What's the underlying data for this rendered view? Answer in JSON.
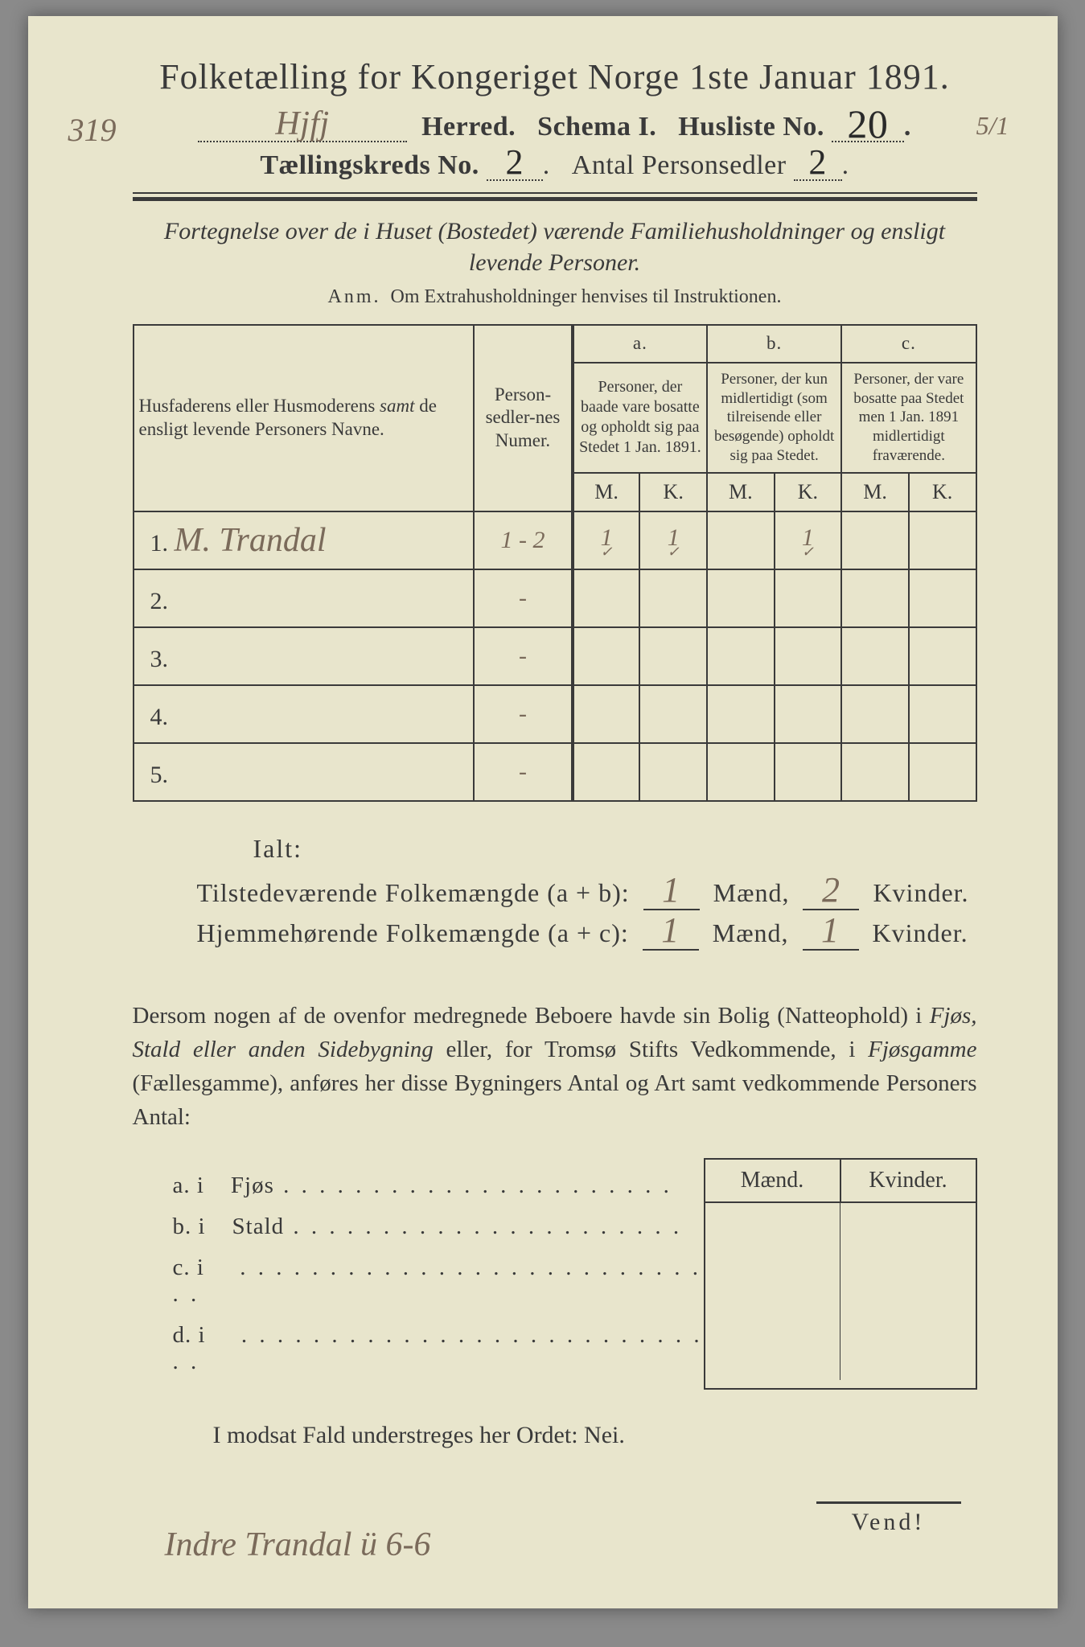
{
  "header": {
    "title": "Folketælling for Kongeriget Norge 1ste Januar 1891.",
    "left_margin_num": "319",
    "right_margin_num": "5/1",
    "herred_value": "Hjfj",
    "herred_label": "Herred.",
    "schema_label": "Schema I.",
    "husliste_label": "Husliste No.",
    "husliste_value": "20",
    "kreds_label": "Tællingskreds No.",
    "kreds_value": "2",
    "antal_label": "Antal Personsedler",
    "antal_value": "2"
  },
  "subtitle": "Fortegnelse over de i Huset (Bostedet) værende Familiehusholdninger og ensligt levende Personer.",
  "anm_label": "Anm.",
  "anm_text": "Om Extrahusholdninger henvises til Instruktionen.",
  "table": {
    "col_name": "Husfaderens eller Husmoderens samt de ensligt levende Personers Navne.",
    "col_num": "Person-sedler-nes Numer.",
    "col_a_label": "a.",
    "col_a": "Personer, der baade vare bosatte og opholdt sig paa Stedet 1 Jan. 1891.",
    "col_b_label": "b.",
    "col_b": "Personer, der kun midlertidigt (som tilreisende eller besøgende) opholdt sig paa Stedet.",
    "col_c_label": "c.",
    "col_c": "Personer, der vare bosatte paa Stedet men 1 Jan. 1891 midlertidigt fraværende.",
    "m": "M.",
    "k": "K.",
    "rows": [
      {
        "n": "1.",
        "name": "M. Trandal",
        "num": "1 - 2",
        "am": "1",
        "ak": "1",
        "bm": "",
        "bk": "1",
        "cm": "",
        "ck": ""
      },
      {
        "n": "2.",
        "name": "",
        "num": "-",
        "am": "",
        "ak": "",
        "bm": "",
        "bk": "",
        "cm": "",
        "ck": ""
      },
      {
        "n": "3.",
        "name": "",
        "num": "-",
        "am": "",
        "ak": "",
        "bm": "",
        "bk": "",
        "cm": "",
        "ck": ""
      },
      {
        "n": "4.",
        "name": "",
        "num": "-",
        "am": "",
        "ak": "",
        "bm": "",
        "bk": "",
        "cm": "",
        "ck": ""
      },
      {
        "n": "5.",
        "name": "",
        "num": "-",
        "am": "",
        "ak": "",
        "bm": "",
        "bk": "",
        "cm": "",
        "ck": ""
      }
    ]
  },
  "totals": {
    "ialt": "Ialt:",
    "line1_label": "Tilstedeværende Folkemængde (a + b):",
    "line1_m": "1",
    "line1_k": "2",
    "line2_label": "Hjemmehørende Folkemængde (a + c):",
    "line2_m": "1",
    "line2_k": "1",
    "maend": "Mænd,",
    "kvinder": "Kvinder."
  },
  "para": "Dersom nogen af de ovenfor medregnede Beboere havde sin Bolig (Natteophold) i Fjøs, Stald eller anden Sidebygning eller, for Tromsø Stifts Vedkommende, i Fjøsgamme (Fællesgamme), anføres her disse Bygningers Antal og Art samt vedkommende Personers Antal:",
  "bygning": {
    "maend": "Mænd.",
    "kvinder": "Kvinder.",
    "rows": [
      {
        "l": "a.  i",
        "t": "Fjøs"
      },
      {
        "l": "b.  i",
        "t": "Stald"
      },
      {
        "l": "c.  i",
        "t": ""
      },
      {
        "l": "d.  i",
        "t": ""
      }
    ]
  },
  "nei": "I modsat Fald understreges her Ordet: Nei.",
  "vend": "Vend!",
  "bottom_note": "Indre Trandal  ü  6-6"
}
